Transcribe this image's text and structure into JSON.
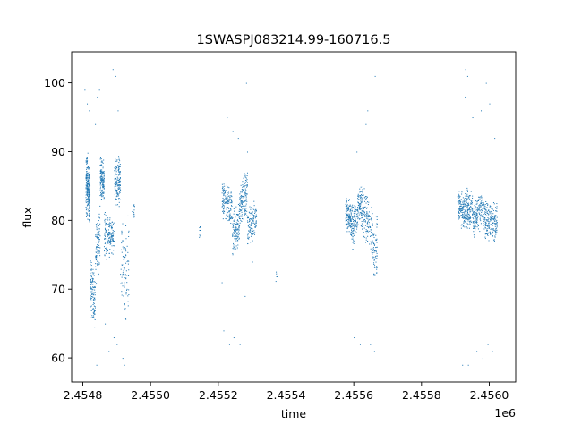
{
  "chart_data": {
    "type": "scatter",
    "title": "1SWASPJ083214.99-160716.5",
    "xlabel": "time",
    "ylabel": "flux",
    "x_offset_label": "1e6",
    "xlim": [
      2454767,
      2456078
    ],
    "ylim": [
      56.5,
      104.5
    ],
    "x_ticks": [
      2454800,
      2455000,
      2455200,
      2455400,
      2455600,
      2455800,
      2456000
    ],
    "x_tick_labels": [
      "2.4548",
      "2.4550",
      "2.4552",
      "2.4554",
      "2.4556",
      "2.4558",
      "2.4560"
    ],
    "y_ticks": [
      60,
      70,
      80,
      90,
      100
    ],
    "y_tick_labels": [
      "60",
      "70",
      "80",
      "90",
      "100"
    ],
    "grid": false,
    "marker_color": "#1f77b4",
    "series": [
      {
        "clusters": [
          {
            "x": [
              2454808,
              2454820
            ],
            "band": [
              [
                80,
                92
              ],
              [
                79,
                88
              ]
            ],
            "density": 260
          },
          {
            "x": [
              2454820,
              2454836
            ],
            "band": [
              [
                66,
                76
              ],
              [
                64,
                72
              ]
            ],
            "density": 120
          },
          {
            "x": [
              2454836,
              2454850
            ],
            "band": [
              [
                70,
                80
              ],
              [
                72,
                84
              ]
            ],
            "density": 90
          },
          {
            "x": [
              2454850,
              2454862
            ],
            "band": [
              [
                83,
                90
              ],
              [
                82,
                89
              ]
            ],
            "density": 130
          },
          {
            "x": [
              2454862,
              2454892
            ],
            "band": [
              [
                74,
                82
              ],
              [
                75,
                80
              ]
            ],
            "density": 150
          },
          {
            "x": [
              2454892,
              2454910
            ],
            "band": [
              [
                81,
                89
              ],
              [
                82,
                90
              ]
            ],
            "density": 140
          },
          {
            "x": [
              2454910,
              2454935
            ],
            "band": [
              [
                66,
                80
              ],
              [
                64,
                82
              ]
            ],
            "density": 90
          },
          {
            "x": [
              2454945,
              2454952
            ],
            "band": [
              [
                80,
                83
              ],
              [
                80,
                83
              ]
            ],
            "density": 12
          },
          {
            "x": [
              2455142,
              2455146
            ],
            "band": [
              [
                77,
                80
              ],
              [
                77,
                80
              ]
            ],
            "density": 8
          },
          {
            "x": [
              2455210,
              2455240
            ],
            "band": [
              [
                80,
                86
              ],
              [
                79,
                85
              ]
            ],
            "density": 150
          },
          {
            "x": [
              2455240,
              2455262
            ],
            "band": [
              [
                74,
                82
              ],
              [
                76,
                83
              ]
            ],
            "density": 130
          },
          {
            "x": [
              2455262,
              2455285
            ],
            "band": [
              [
                79,
                86
              ],
              [
                80,
                88
              ]
            ],
            "density": 130
          },
          {
            "x": [
              2455285,
              2455312
            ],
            "band": [
              [
                76,
                82
              ],
              [
                77,
                84
              ]
            ],
            "density": 120
          },
          {
            "x": [
              2455368,
              2455372
            ],
            "band": [
              [
                71,
                73
              ],
              [
                71,
                73
              ]
            ],
            "density": 6
          },
          {
            "x": [
              2455575,
              2455595
            ],
            "band": [
              [
                78,
                84
              ],
              [
                77,
                83
              ]
            ],
            "density": 150
          },
          {
            "x": [
              2455595,
              2455620
            ],
            "band": [
              [
                75,
                82
              ],
              [
                80,
                86
              ]
            ],
            "density": 150
          },
          {
            "x": [
              2455620,
              2455655
            ],
            "band": [
              [
                78,
                86
              ],
              [
                74,
                82
              ]
            ],
            "density": 160
          },
          {
            "x": [
              2455655,
              2455668
            ],
            "band": [
              [
                70,
                80
              ],
              [
                72,
                82
              ]
            ],
            "density": 60
          },
          {
            "x": [
              2455905,
              2455925
            ],
            "band": [
              [
                80,
                85
              ],
              [
                78,
                84
              ]
            ],
            "density": 120
          },
          {
            "x": [
              2455925,
              2455950
            ],
            "band": [
              [
                78,
                86
              ],
              [
                79,
                84
              ]
            ],
            "density": 150
          },
          {
            "x": [
              2455950,
              2455980
            ],
            "band": [
              [
                77,
                82
              ],
              [
                79,
                86
              ]
            ],
            "density": 150
          },
          {
            "x": [
              2455980,
              2456010
            ],
            "band": [
              [
                77,
                84
              ],
              [
                77,
                82
              ]
            ],
            "density": 150
          },
          {
            "x": [
              2456010,
              2456022
            ],
            "band": [
              [
                76,
                83
              ],
              [
                77,
                83
              ]
            ],
            "density": 60
          }
        ],
        "outliers": [
          [
            2454805,
            99
          ],
          [
            2454812,
            97
          ],
          [
            2454818,
            96
          ],
          [
            2454836,
            94
          ],
          [
            2454842,
            98
          ],
          [
            2454848,
            99
          ],
          [
            2454888,
            102
          ],
          [
            2454896,
            101
          ],
          [
            2454903,
            96
          ],
          [
            2454840,
            59
          ],
          [
            2454876,
            61
          ],
          [
            2454891,
            63
          ],
          [
            2454917,
            60
          ],
          [
            2454922,
            59
          ],
          [
            2454900,
            62
          ],
          [
            2454865,
            65
          ],
          [
            2455215,
            64
          ],
          [
            2455232,
            62
          ],
          [
            2455245,
            63
          ],
          [
            2455263,
            62
          ],
          [
            2455278,
            69
          ],
          [
            2455282,
            100
          ],
          [
            2455258,
            92
          ],
          [
            2455225,
            95
          ],
          [
            2455242,
            93
          ],
          [
            2455285,
            90
          ],
          [
            2455210,
            71
          ],
          [
            2455300,
            74
          ],
          [
            2455635,
            94
          ],
          [
            2455662,
            101
          ],
          [
            2455640,
            96
          ],
          [
            2455600,
            63
          ],
          [
            2455618,
            62
          ],
          [
            2455648,
            62
          ],
          [
            2455660,
            61
          ],
          [
            2455608,
            90
          ],
          [
            2455929,
            102
          ],
          [
            2455935,
            101
          ],
          [
            2455950,
            95
          ],
          [
            2455975,
            96
          ],
          [
            2455990,
            100
          ],
          [
            2456000,
            97
          ],
          [
            2456015,
            92
          ],
          [
            2455920,
            59
          ],
          [
            2455937,
            59
          ],
          [
            2455962,
            61
          ],
          [
            2455980,
            60
          ],
          [
            2455995,
            62
          ],
          [
            2456008,
            61
          ],
          [
            2455928,
            98
          ]
        ]
      }
    ]
  }
}
